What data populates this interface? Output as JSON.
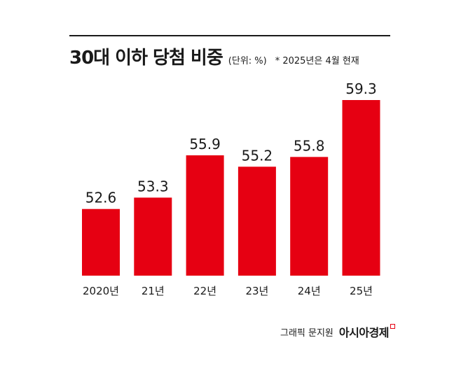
{
  "header": {
    "title": "30대 이하 당첨 비중",
    "unit": "(단위: %)",
    "note": "* 2025년은 4월 현재"
  },
  "chart_data": {
    "type": "bar",
    "categories": [
      "2020년",
      "21년",
      "22년",
      "23년",
      "24년",
      "25년"
    ],
    "values": [
      52.6,
      53.3,
      55.9,
      55.2,
      55.8,
      59.3
    ],
    "data_labels": [
      "52.6",
      "53.3",
      "55.9",
      "55.2",
      "55.8",
      "59.3"
    ],
    "bar_color": "#e60012",
    "grid": false,
    "legend": "none"
  },
  "footer": {
    "credit": "그래픽 문지원",
    "logo": "아시아경제",
    "logo_color": "#e60012"
  }
}
